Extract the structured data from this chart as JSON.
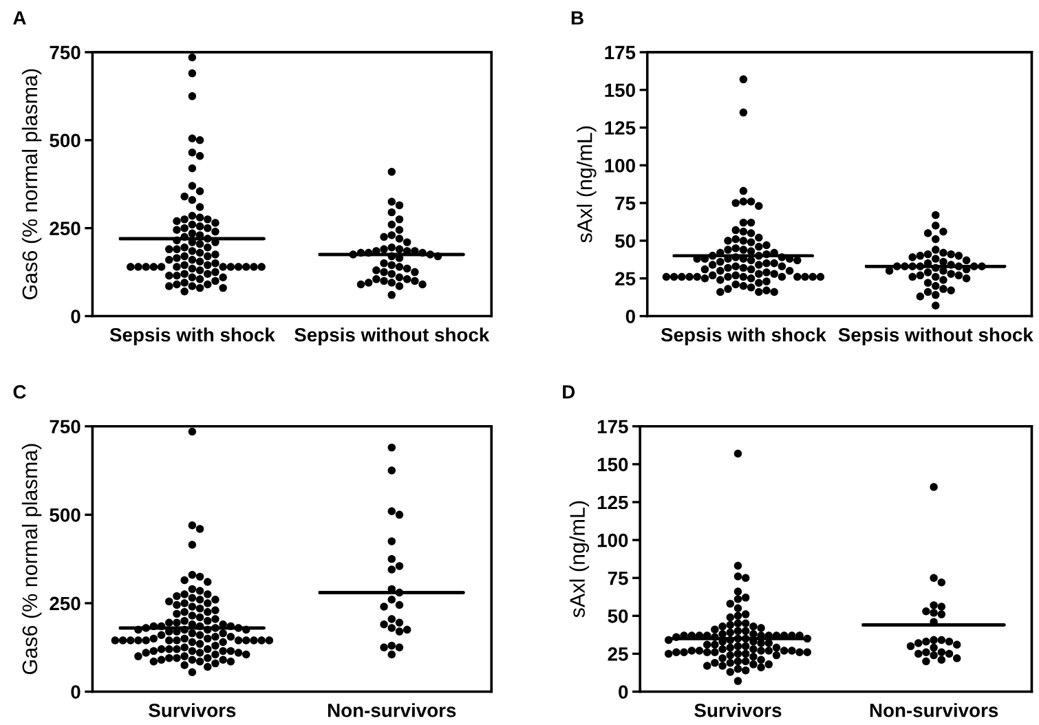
{
  "chart_data": [
    {
      "type": "scatter",
      "title": "A",
      "ylabel": "Gas6 (% normal plasma)",
      "categories": [
        "Sepsis with shock",
        "Sepsis without shock"
      ],
      "ylim": [
        0,
        750
      ],
      "yticks": [
        0,
        250,
        500,
        750
      ],
      "grid": false,
      "series": [
        {
          "color": "#000000",
          "marker": "circle",
          "x": [
            "Sepsis with shock",
            "Sepsis with shock",
            "Sepsis with shock",
            "Sepsis with shock",
            "Sepsis with shock",
            "Sepsis with shock",
            "Sepsis with shock",
            "Sepsis with shock",
            "Sepsis with shock",
            "Sepsis with shock",
            "Sepsis with shock",
            "Sepsis with shock",
            "Sepsis with shock",
            "Sepsis with shock",
            "Sepsis with shock",
            "Sepsis with shock",
            "Sepsis with shock",
            "Sepsis with shock",
            "Sepsis with shock",
            "Sepsis with shock",
            "Sepsis with shock",
            "Sepsis with shock",
            "Sepsis with shock",
            "Sepsis with shock",
            "Sepsis with shock",
            "Sepsis with shock",
            "Sepsis with shock",
            "Sepsis with shock",
            "Sepsis with shock",
            "Sepsis with shock",
            "Sepsis with shock",
            "Sepsis with shock",
            "Sepsis with shock",
            "Sepsis with shock",
            "Sepsis with shock",
            "Sepsis with shock",
            "Sepsis with shock",
            "Sepsis with shock",
            "Sepsis with shock",
            "Sepsis with shock",
            "Sepsis with shock",
            "Sepsis with shock",
            "Sepsis with shock",
            "Sepsis with shock",
            "Sepsis with shock",
            "Sepsis with shock",
            "Sepsis with shock",
            "Sepsis with shock",
            "Sepsis with shock",
            "Sepsis with shock",
            "Sepsis with shock",
            "Sepsis with shock",
            "Sepsis with shock",
            "Sepsis with shock",
            "Sepsis with shock",
            "Sepsis with shock",
            "Sepsis with shock",
            "Sepsis with shock",
            "Sepsis with shock",
            "Sepsis with shock",
            "Sepsis with shock",
            "Sepsis with shock",
            "Sepsis with shock",
            "Sepsis with shock",
            "Sepsis with shock",
            "Sepsis with shock",
            "Sepsis with shock",
            "Sepsis with shock",
            "Sepsis with shock",
            "Sepsis with shock",
            "Sepsis with shock",
            "Sepsis with shock",
            "Sepsis with shock",
            "Sepsis with shock",
            "Sepsis with shock",
            "Sepsis with shock",
            "Sepsis with shock",
            "Sepsis with shock",
            "Sepsis with shock",
            "Sepsis with shock"
          ],
          "values": [
            735,
            690,
            625,
            505,
            500,
            465,
            455,
            420,
            370,
            355,
            330,
            340,
            310,
            285,
            280,
            275,
            275,
            270,
            265,
            260,
            255,
            250,
            250,
            245,
            240,
            235,
            230,
            225,
            220,
            215,
            210,
            210,
            205,
            195,
            195,
            190,
            190,
            185,
            180,
            175,
            170,
            170,
            165,
            160,
            160,
            155,
            150,
            145,
            145,
            140,
            140,
            140,
            140,
            140,
            140,
            140,
            140,
            140,
            140,
            140,
            140,
            135,
            130,
            125,
            120,
            120,
            115,
            115,
            110,
            110,
            105,
            100,
            95,
            90,
            90,
            85,
            85,
            80,
            80,
            70
          ]
        },
        {
          "color": "#000000",
          "marker": "circle",
          "x": [
            "Sepsis without shock",
            "Sepsis without shock",
            "Sepsis without shock",
            "Sepsis without shock",
            "Sepsis without shock",
            "Sepsis without shock",
            "Sepsis without shock",
            "Sepsis without shock",
            "Sepsis without shock",
            "Sepsis without shock",
            "Sepsis without shock",
            "Sepsis without shock",
            "Sepsis without shock",
            "Sepsis without shock",
            "Sepsis without shock",
            "Sepsis without shock",
            "Sepsis without shock",
            "Sepsis without shock",
            "Sepsis without shock",
            "Sepsis without shock",
            "Sepsis without shock",
            "Sepsis without shock",
            "Sepsis without shock",
            "Sepsis without shock",
            "Sepsis without shock",
            "Sepsis without shock",
            "Sepsis without shock",
            "Sepsis without shock",
            "Sepsis without shock",
            "Sepsis without shock",
            "Sepsis without shock",
            "Sepsis without shock",
            "Sepsis without shock",
            "Sepsis without shock",
            "Sepsis without shock",
            "Sepsis without shock",
            "Sepsis without shock",
            "Sepsis without shock",
            "Sepsis without shock",
            "Sepsis without shock",
            "Sepsis without shock",
            "Sepsis without shock",
            "Sepsis without shock",
            "Sepsis without shock"
          ],
          "values": [
            410,
            325,
            315,
            295,
            275,
            260,
            245,
            230,
            225,
            220,
            210,
            195,
            190,
            190,
            185,
            185,
            185,
            180,
            180,
            180,
            175,
            175,
            170,
            170,
            165,
            150,
            145,
            140,
            135,
            130,
            125,
            125,
            120,
            110,
            105,
            105,
            100,
            100,
            95,
            95,
            90,
            90,
            85,
            60
          ]
        },
        {
          "type": "box",
          "color": "#000000",
          "boxes": [
            {
              "low": 220,
              "q1": 220,
              "median": 220,
              "q3": 220,
              "high": 220
            },
            {
              "low": 175,
              "q1": 175,
              "median": 175,
              "q3": 175,
              "high": 175
            }
          ]
        }
      ]
    },
    {
      "type": "scatter",
      "title": "B",
      "ylabel": "sAxl (ng/mL)",
      "categories": [
        "Sepsis with shock",
        "Sepsis without shock"
      ],
      "ylim": [
        0,
        175
      ],
      "yticks": [
        0,
        25,
        50,
        75,
        100,
        125,
        150,
        175
      ],
      "grid": false,
      "series": [
        {
          "color": "#000000",
          "marker": "circle",
          "x": [
            "Sepsis with shock",
            "Sepsis with shock",
            "Sepsis with shock",
            "Sepsis with shock",
            "Sepsis with shock",
            "Sepsis with shock",
            "Sepsis with shock",
            "Sepsis with shock",
            "Sepsis with shock",
            "Sepsis with shock",
            "Sepsis with shock",
            "Sepsis with shock",
            "Sepsis with shock",
            "Sepsis with shock",
            "Sepsis with shock",
            "Sepsis with shock",
            "Sepsis with shock",
            "Sepsis with shock",
            "Sepsis with shock",
            "Sepsis with shock",
            "Sepsis with shock",
            "Sepsis with shock",
            "Sepsis with shock",
            "Sepsis with shock",
            "Sepsis with shock",
            "Sepsis with shock",
            "Sepsis with shock",
            "Sepsis with shock",
            "Sepsis with shock",
            "Sepsis with shock",
            "Sepsis with shock",
            "Sepsis with shock",
            "Sepsis with shock",
            "Sepsis with shock",
            "Sepsis with shock",
            "Sepsis with shock",
            "Sepsis with shock",
            "Sepsis with shock",
            "Sepsis with shock",
            "Sepsis with shock",
            "Sepsis with shock",
            "Sepsis with shock",
            "Sepsis with shock",
            "Sepsis with shock",
            "Sepsis with shock",
            "Sepsis with shock",
            "Sepsis with shock",
            "Sepsis with shock",
            "Sepsis with shock",
            "Sepsis with shock",
            "Sepsis with shock",
            "Sepsis with shock",
            "Sepsis with shock",
            "Sepsis with shock",
            "Sepsis with shock",
            "Sepsis with shock",
            "Sepsis with shock",
            "Sepsis with shock",
            "Sepsis with shock",
            "Sepsis with shock",
            "Sepsis with shock",
            "Sepsis with shock",
            "Sepsis with shock",
            "Sepsis with shock",
            "Sepsis with shock",
            "Sepsis with shock",
            "Sepsis with shock",
            "Sepsis with shock",
            "Sepsis with shock",
            "Sepsis with shock",
            "Sepsis with shock",
            "Sepsis with shock",
            "Sepsis with shock",
            "Sepsis with shock",
            "Sepsis with shock",
            "Sepsis with shock",
            "Sepsis with shock",
            "Sepsis with shock",
            "Sepsis with shock",
            "Sepsis with shock"
          ],
          "values": [
            157,
            135,
            83,
            76,
            76,
            75,
            73,
            62,
            62,
            57,
            56,
            55,
            52,
            51,
            50,
            50,
            49,
            47,
            46,
            45,
            44,
            44,
            43,
            42,
            42,
            41,
            40,
            40,
            39,
            39,
            38,
            38,
            38,
            38,
            38,
            37,
            37,
            36,
            35,
            35,
            34,
            34,
            33,
            33,
            32,
            32,
            31,
            31,
            30,
            30,
            29,
            28,
            28,
            27,
            27,
            26,
            26,
            26,
            26,
            26,
            26,
            26,
            26,
            26,
            26,
            26,
            26,
            25,
            25,
            24,
            23,
            22,
            21,
            20,
            19,
            18,
            17,
            16,
            16,
            16
          ]
        },
        {
          "color": "#000000",
          "marker": "circle",
          "x": [
            "Sepsis without shock",
            "Sepsis without shock",
            "Sepsis without shock",
            "Sepsis without shock",
            "Sepsis without shock",
            "Sepsis without shock",
            "Sepsis without shock",
            "Sepsis without shock",
            "Sepsis without shock",
            "Sepsis without shock",
            "Sepsis without shock",
            "Sepsis without shock",
            "Sepsis without shock",
            "Sepsis without shock",
            "Sepsis without shock",
            "Sepsis without shock",
            "Sepsis without shock",
            "Sepsis without shock",
            "Sepsis without shock",
            "Sepsis without shock",
            "Sepsis without shock",
            "Sepsis without shock",
            "Sepsis without shock",
            "Sepsis without shock",
            "Sepsis without shock",
            "Sepsis without shock",
            "Sepsis without shock",
            "Sepsis without shock",
            "Sepsis without shock",
            "Sepsis without shock",
            "Sepsis without shock",
            "Sepsis without shock",
            "Sepsis without shock",
            "Sepsis without shock",
            "Sepsis without shock",
            "Sepsis without shock",
            "Sepsis without shock",
            "Sepsis without shock",
            "Sepsis without shock",
            "Sepsis without shock",
            "Sepsis without shock",
            "Sepsis without shock",
            "Sepsis without shock",
            "Sepsis without shock"
          ],
          "values": [
            67,
            60,
            56,
            55,
            51,
            44,
            42,
            41,
            41,
            40,
            40,
            39,
            38,
            37,
            36,
            35,
            34,
            33,
            33,
            33,
            33,
            33,
            33,
            33,
            32,
            31,
            30,
            30,
            29,
            28,
            27,
            27,
            26,
            26,
            25,
            24,
            22,
            20,
            18,
            17,
            16,
            14,
            13,
            7
          ]
        },
        {
          "type": "box",
          "color": "#000000",
          "boxes": [
            {
              "low": 40,
              "q1": 40,
              "median": 40,
              "q3": 40,
              "high": 40
            },
            {
              "low": 33,
              "q1": 33,
              "median": 33,
              "q3": 33,
              "high": 33
            }
          ]
        }
      ]
    },
    {
      "type": "scatter",
      "title": "C",
      "ylabel": "Gas6 (% normal plasma)",
      "categories": [
        "Survivors",
        "Non-survivors"
      ],
      "ylim": [
        0,
        750
      ],
      "yticks": [
        0,
        250,
        500,
        750
      ],
      "grid": false,
      "series": [
        {
          "color": "#000000",
          "marker": "circle",
          "x": [
            "Survivors",
            "Survivors",
            "Survivors",
            "Survivors",
            "Survivors",
            "Survivors",
            "Survivors",
            "Survivors",
            "Survivors",
            "Survivors",
            "Survivors",
            "Survivors",
            "Survivors",
            "Survivors",
            "Survivors",
            "Survivors",
            "Survivors",
            "Survivors",
            "Survivors",
            "Survivors",
            "Survivors",
            "Survivors",
            "Survivors",
            "Survivors",
            "Survivors",
            "Survivors",
            "Survivors",
            "Survivors",
            "Survivors",
            "Survivors",
            "Survivors",
            "Survivors",
            "Survivors",
            "Survivors",
            "Survivors",
            "Survivors",
            "Survivors",
            "Survivors",
            "Survivors",
            "Survivors",
            "Survivors",
            "Survivors",
            "Survivors",
            "Survivors",
            "Survivors",
            "Survivors",
            "Survivors",
            "Survivors",
            "Survivors",
            "Survivors",
            "Survivors",
            "Survivors",
            "Survivors",
            "Survivors",
            "Survivors",
            "Survivors",
            "Survivors",
            "Survivors",
            "Survivors",
            "Survivors",
            "Survivors",
            "Survivors",
            "Survivors",
            "Survivors",
            "Survivors",
            "Survivors",
            "Survivors",
            "Survivors",
            "Survivors",
            "Survivors",
            "Survivors",
            "Survivors",
            "Survivors",
            "Survivors",
            "Survivors",
            "Survivors",
            "Survivors",
            "Survivors",
            "Survivors",
            "Survivors",
            "Survivors",
            "Survivors",
            "Survivors",
            "Survivors",
            "Survivors",
            "Survivors",
            "Survivors",
            "Survivors",
            "Survivors",
            "Survivors",
            "Survivors",
            "Survivors",
            "Survivors",
            "Survivors",
            "Survivors",
            "Survivors",
            "Survivors",
            "Survivors",
            "Survivors",
            "Survivors",
            "Survivors",
            "Survivors"
          ],
          "values": [
            735,
            470,
            460,
            415,
            330,
            325,
            315,
            310,
            290,
            285,
            275,
            275,
            270,
            265,
            260,
            260,
            255,
            250,
            250,
            245,
            240,
            235,
            230,
            225,
            225,
            220,
            215,
            210,
            205,
            200,
            200,
            195,
            195,
            190,
            190,
            185,
            185,
            185,
            185,
            180,
            180,
            180,
            175,
            175,
            175,
            175,
            170,
            170,
            165,
            165,
            160,
            160,
            155,
            155,
            150,
            150,
            150,
            145,
            145,
            145,
            145,
            145,
            145,
            145,
            145,
            145,
            145,
            145,
            145,
            140,
            140,
            135,
            130,
            125,
            120,
            120,
            120,
            120,
            115,
            115,
            115,
            115,
            110,
            110,
            110,
            105,
            105,
            100,
            100,
            95,
            95,
            95,
            90,
            90,
            90,
            85,
            85,
            85,
            80,
            75,
            70,
            55
          ]
        },
        {
          "color": "#000000",
          "marker": "circle",
          "x": [
            "Non-survivors",
            "Non-survivors",
            "Non-survivors",
            "Non-survivors",
            "Non-survivors",
            "Non-survivors",
            "Non-survivors",
            "Non-survivors",
            "Non-survivors",
            "Non-survivors",
            "Non-survivors",
            "Non-survivors",
            "Non-survivors",
            "Non-survivors",
            "Non-survivors",
            "Non-survivors",
            "Non-survivors",
            "Non-survivors",
            "Non-survivors",
            "Non-survivors",
            "Non-survivors",
            "Non-survivors",
            "Non-survivors"
          ],
          "values": [
            690,
            625,
            510,
            500,
            425,
            375,
            355,
            345,
            290,
            280,
            260,
            245,
            240,
            205,
            195,
            190,
            180,
            175,
            170,
            130,
            125,
            125,
            105
          ]
        },
        {
          "type": "box",
          "color": "#000000",
          "boxes": [
            {
              "low": 180,
              "q1": 180,
              "median": 180,
              "q3": 180,
              "high": 180
            },
            {
              "low": 280,
              "q1": 280,
              "median": 280,
              "q3": 280,
              "high": 280
            }
          ]
        }
      ]
    },
    {
      "type": "scatter",
      "title": "D",
      "ylabel": "sAxl (ng/mL)",
      "categories": [
        "Survivors",
        "Non-survivors"
      ],
      "ylim": [
        0,
        175
      ],
      "yticks": [
        0,
        25,
        50,
        75,
        100,
        125,
        150,
        175
      ],
      "grid": false,
      "series": [
        {
          "color": "#000000",
          "marker": "circle",
          "x": [
            "Survivors",
            "Survivors",
            "Survivors",
            "Survivors",
            "Survivors",
            "Survivors",
            "Survivors",
            "Survivors",
            "Survivors",
            "Survivors",
            "Survivors",
            "Survivors",
            "Survivors",
            "Survivors",
            "Survivors",
            "Survivors",
            "Survivors",
            "Survivors",
            "Survivors",
            "Survivors",
            "Survivors",
            "Survivors",
            "Survivors",
            "Survivors",
            "Survivors",
            "Survivors",
            "Survivors",
            "Survivors",
            "Survivors",
            "Survivors",
            "Survivors",
            "Survivors",
            "Survivors",
            "Survivors",
            "Survivors",
            "Survivors",
            "Survivors",
            "Survivors",
            "Survivors",
            "Survivors",
            "Survivors",
            "Survivors",
            "Survivors",
            "Survivors",
            "Survivors",
            "Survivors",
            "Survivors",
            "Survivors",
            "Survivors",
            "Survivors",
            "Survivors",
            "Survivors",
            "Survivors",
            "Survivors",
            "Survivors",
            "Survivors",
            "Survivors",
            "Survivors",
            "Survivors",
            "Survivors",
            "Survivors",
            "Survivors",
            "Survivors",
            "Survivors",
            "Survivors",
            "Survivors",
            "Survivors",
            "Survivors",
            "Survivors",
            "Survivors",
            "Survivors",
            "Survivors",
            "Survivors",
            "Survivors",
            "Survivors",
            "Survivors",
            "Survivors",
            "Survivors",
            "Survivors",
            "Survivors",
            "Survivors",
            "Survivors",
            "Survivors",
            "Survivors",
            "Survivors",
            "Survivors"
          ],
          "values": [
            157,
            83,
            76,
            75,
            66,
            62,
            61,
            58,
            55,
            51,
            50,
            49,
            45,
            45,
            44,
            43,
            43,
            42,
            41,
            40,
            40,
            39,
            38,
            38,
            37,
            37,
            37,
            37,
            37,
            37,
            37,
            37,
            37,
            37,
            36,
            36,
            35,
            35,
            35,
            34,
            34,
            33,
            33,
            32,
            32,
            31,
            31,
            30,
            30,
            29,
            29,
            28,
            28,
            27,
            27,
            27,
            27,
            27,
            27,
            26,
            26,
            26,
            26,
            26,
            26,
            25,
            25,
            25,
            24,
            24,
            23,
            22,
            21,
            20,
            20,
            19,
            19,
            18,
            18,
            17,
            17,
            16,
            15,
            14,
            13,
            7
          ]
        },
        {
          "color": "#000000",
          "marker": "circle",
          "x": [
            "Non-survivors",
            "Non-survivors",
            "Non-survivors",
            "Non-survivors",
            "Non-survivors",
            "Non-survivors",
            "Non-survivors",
            "Non-survivors",
            "Non-survivors",
            "Non-survivors",
            "Non-survivors",
            "Non-survivors",
            "Non-survivors",
            "Non-survivors",
            "Non-survivors",
            "Non-survivors",
            "Non-survivors",
            "Non-survivors",
            "Non-survivors",
            "Non-survivors",
            "Non-survivors",
            "Non-survivors",
            "Non-survivors",
            "Non-survivors",
            "Non-survivors"
          ],
          "values": [
            135,
            75,
            72,
            57,
            56,
            53,
            52,
            51,
            46,
            34,
            34,
            33,
            33,
            32,
            31,
            30,
            29,
            26,
            26,
            25,
            25,
            24,
            22,
            21,
            20
          ]
        },
        {
          "type": "box",
          "color": "#000000",
          "boxes": [
            {
              "low": 35,
              "q1": 35,
              "median": 35,
              "q3": 35,
              "high": 35
            },
            {
              "low": 44,
              "q1": 44,
              "median": 44,
              "q3": 44,
              "high": 44
            }
          ]
        }
      ]
    }
  ]
}
